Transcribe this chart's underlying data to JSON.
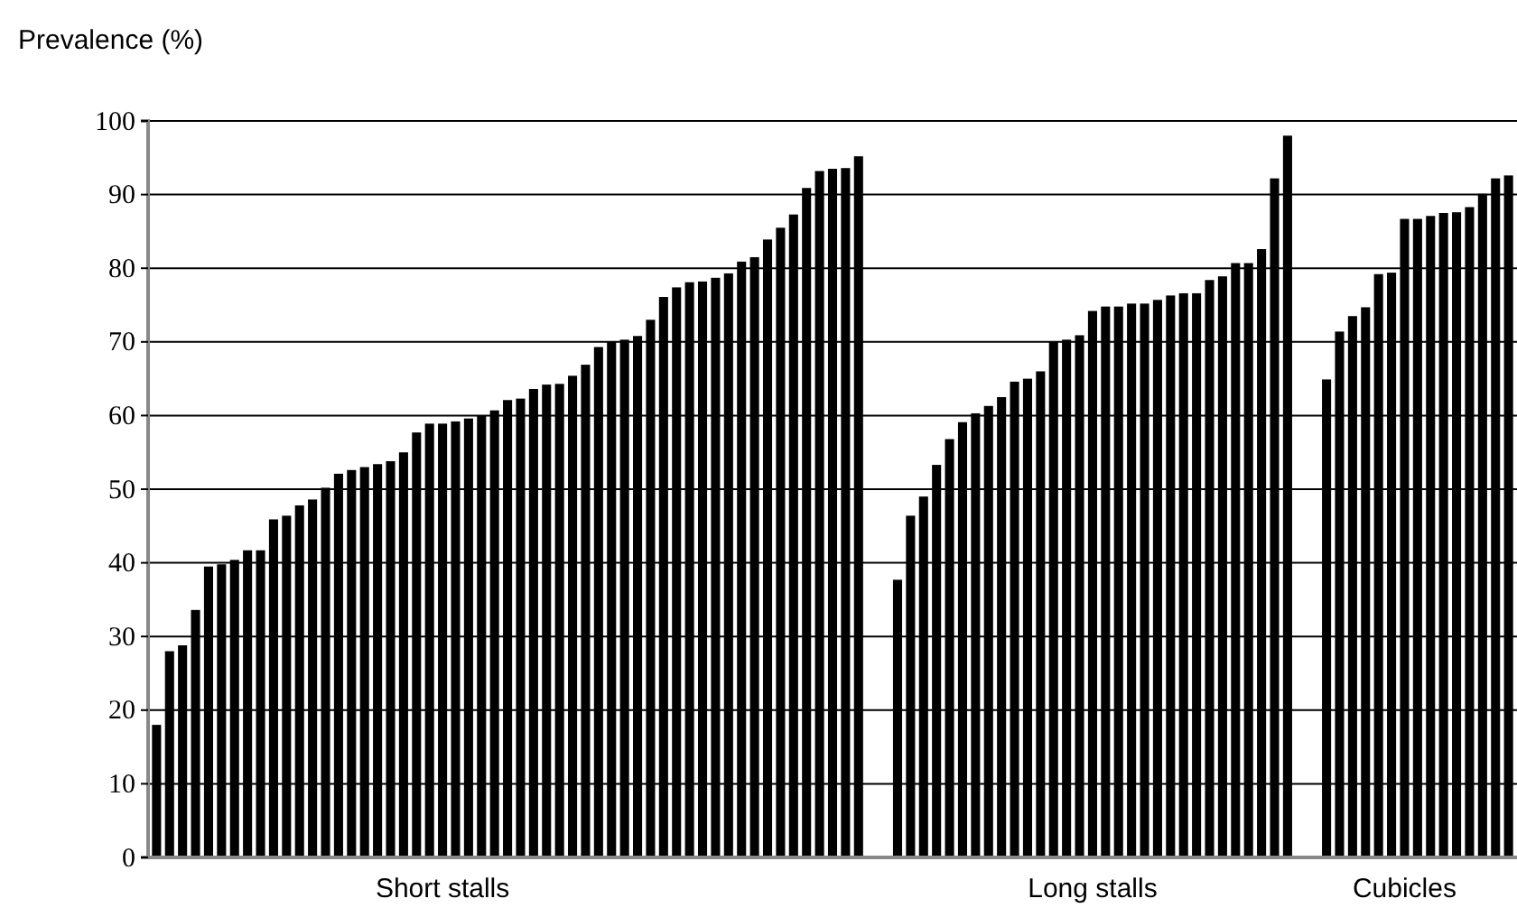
{
  "chart_data": {
    "type": "bar",
    "ylabel": "Prevalence (%)",
    "categories": [
      null,
      null,
      null,
      null,
      null,
      null,
      null,
      null,
      null,
      null,
      null,
      null,
      null,
      null,
      null,
      null,
      null,
      null,
      null,
      null,
      null,
      null,
      "Short stalls",
      null,
      null,
      null,
      null,
      null,
      null,
      null,
      null,
      null,
      null,
      null,
      null,
      null,
      null,
      null,
      null,
      null,
      null,
      null,
      null,
      null,
      null,
      null,
      null,
      null,
      null,
      null,
      null,
      null,
      null,
      null,
      null,
      null,
      null,
      null,
      null,
      null,
      null,
      null,
      null,
      null,
      null,
      null,
      null,
      null,
      null,
      null,
      null,
      null,
      "Long stalls",
      null,
      null,
      null,
      null,
      null,
      null,
      null,
      null,
      null,
      null,
      null,
      null,
      null,
      null,
      null,
      null,
      null,
      null,
      null,
      null,
      null,
      null,
      null,
      "Cubicles",
      null,
      null,
      null,
      null,
      null,
      null,
      null,
      null
    ],
    "values": [
      18,
      28,
      28.8,
      33.6,
      39.5,
      39.8,
      40.4,
      41.7,
      41.7,
      45.9,
      46.4,
      47.8,
      48.6,
      50.2,
      52.1,
      52.6,
      53,
      53.4,
      53.8,
      55,
      57.7,
      58.9,
      58.9,
      59.2,
      59.6,
      60,
      60.7,
      62.1,
      62.3,
      63.6,
      64.2,
      64.3,
      65.4,
      66.9,
      69.3,
      70,
      70.3,
      70.8,
      73,
      76.1,
      77.4,
      78.1,
      78.2,
      78.7,
      79.3,
      80.9,
      81.5,
      83.9,
      85.5,
      87.3,
      90.9,
      93.2,
      93.5,
      93.6,
      95.2,
      null,
      null,
      37.7,
      46.4,
      49,
      53.3,
      56.8,
      59.1,
      60.3,
      61.3,
      62.5,
      64.6,
      65,
      66,
      70.1,
      70.3,
      70.9,
      74.2,
      74.8,
      74.8,
      75.2,
      75.2,
      75.7,
      76.3,
      76.6,
      76.6,
      78.4,
      78.9,
      80.7,
      80.7,
      82.6,
      92.2,
      98,
      null,
      null,
      64.9,
      71.4,
      73.5,
      74.7,
      79.2,
      79.4,
      86.7,
      86.7,
      87.1,
      87.5,
      87.6,
      88.3,
      90.1,
      92.2,
      92.6
    ],
    "color": "#000000",
    "ylim": [
      0,
      100
    ],
    "yticks": [
      0,
      10,
      20,
      30,
      40,
      50,
      60,
      70,
      80,
      90,
      100
    ],
    "grid": "y"
  }
}
